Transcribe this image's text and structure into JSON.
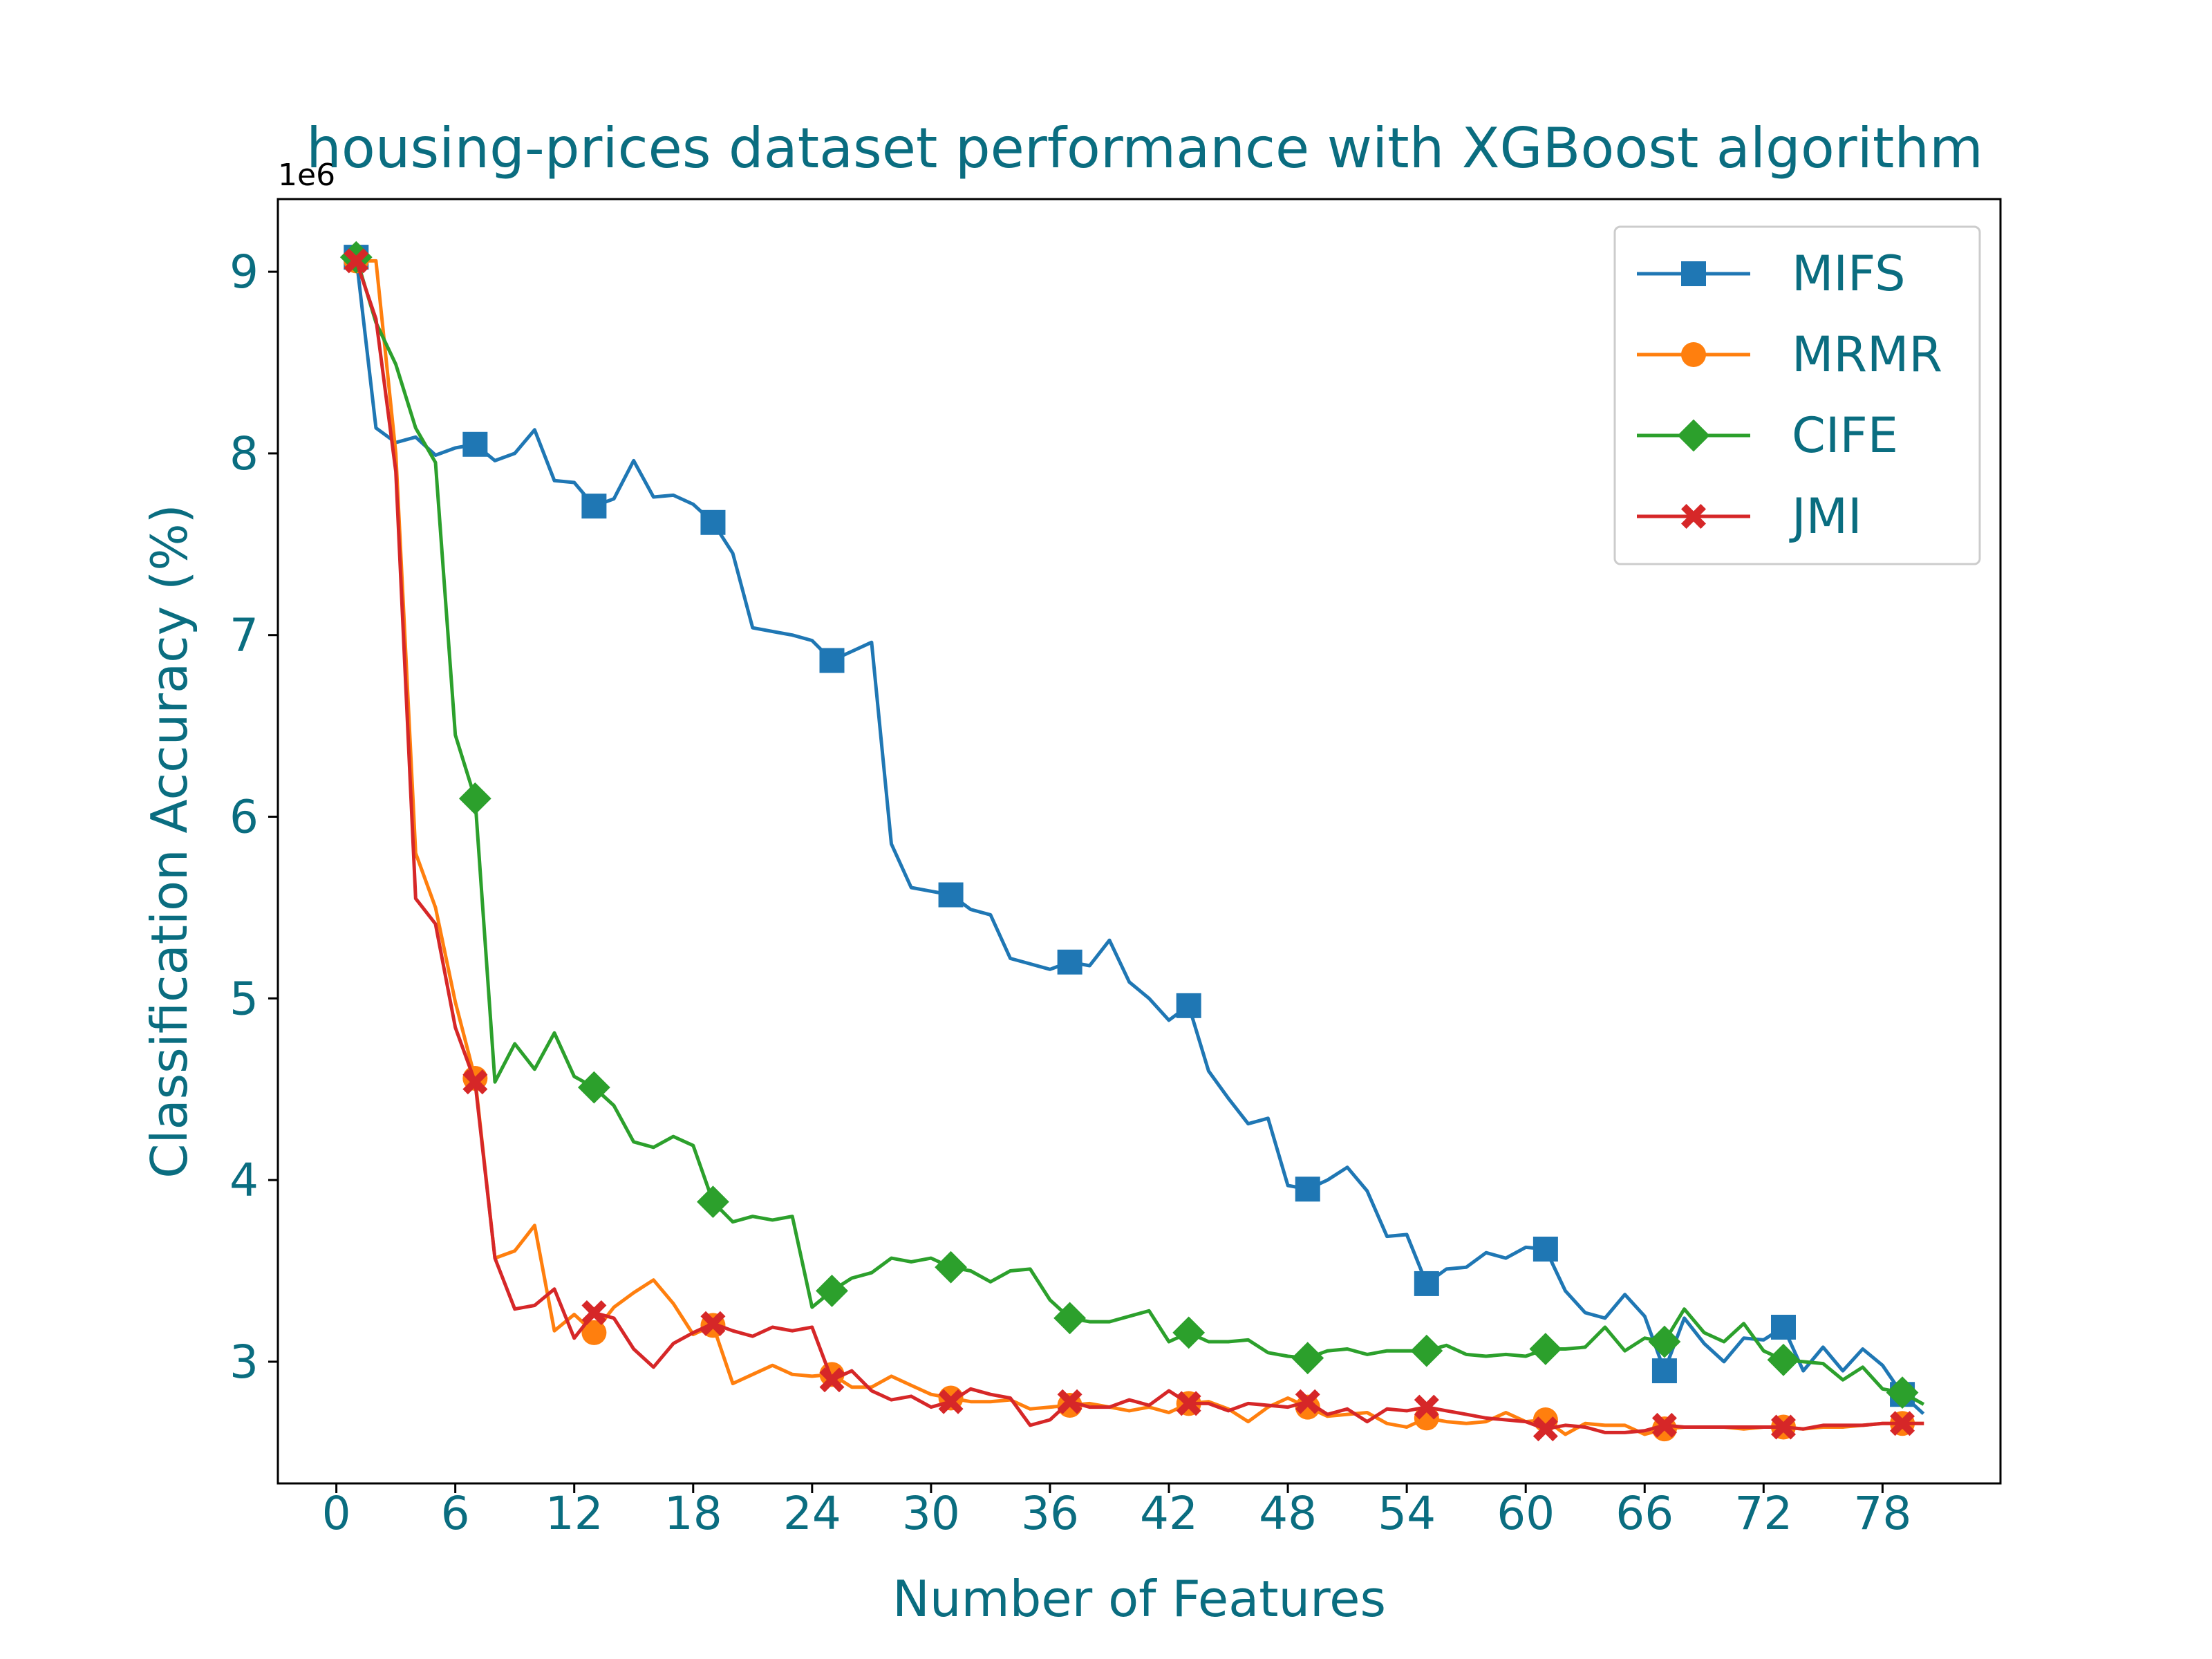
{
  "chart_data": {
    "type": "line",
    "title": "housing-prices dataset performance with XGBoost algorithm",
    "xlabel": "Number of Features",
    "ylabel": "Classification Accuracy (%)",
    "y_offset_label": "1e6",
    "y_scale_factor": 1000000,
    "xlim": [
      -2.95,
      83.95
    ],
    "ylim": [
      2.33,
      9.4
    ],
    "x_ticks": [
      0,
      6,
      12,
      18,
      24,
      30,
      36,
      42,
      48,
      54,
      60,
      66,
      72,
      78
    ],
    "y_ticks": [
      3,
      4,
      5,
      6,
      7,
      8,
      9
    ],
    "marker_every": 6,
    "marker_offset": 1,
    "legend_position": "upper right",
    "grid": false,
    "x": [
      1,
      2,
      3,
      4,
      5,
      6,
      7,
      8,
      9,
      10,
      11,
      12,
      13,
      14,
      15,
      16,
      17,
      18,
      19,
      20,
      21,
      22,
      23,
      24,
      25,
      26,
      27,
      28,
      29,
      30,
      31,
      32,
      33,
      34,
      35,
      36,
      37,
      38,
      39,
      40,
      41,
      42,
      43,
      44,
      45,
      46,
      47,
      48,
      49,
      50,
      51,
      52,
      53,
      54,
      55,
      56,
      57,
      58,
      59,
      60,
      61,
      62,
      63,
      64,
      65,
      66,
      67,
      68,
      69,
      70,
      71,
      72,
      73,
      74,
      75,
      76,
      77,
      78,
      79,
      80
    ],
    "series": [
      {
        "name": "MIFS",
        "color": "#1f77b4",
        "marker": "square",
        "values": [
          9.08,
          8.14,
          8.06,
          8.09,
          7.99,
          8.03,
          8.05,
          7.96,
          8.0,
          8.13,
          7.85,
          7.84,
          7.71,
          7.75,
          7.96,
          7.76,
          7.77,
          7.72,
          7.62,
          7.45,
          7.04,
          7.02,
          7.0,
          6.97,
          6.86,
          6.91,
          6.96,
          5.85,
          5.61,
          5.59,
          5.57,
          5.49,
          5.46,
          5.22,
          5.19,
          5.16,
          5.2,
          5.18,
          5.32,
          5.09,
          5.0,
          4.88,
          4.96,
          4.6,
          4.45,
          4.31,
          4.34,
          3.97,
          3.95,
          4.0,
          4.07,
          3.94,
          3.69,
          3.7,
          3.43,
          3.51,
          3.52,
          3.6,
          3.57,
          3.63,
          3.62,
          3.39,
          3.27,
          3.24,
          3.37,
          3.25,
          2.95,
          3.24,
          3.1,
          3.0,
          3.13,
          3.12,
          3.19,
          2.95,
          3.08,
          2.95,
          3.07,
          2.98,
          2.82,
          2.72
        ]
      },
      {
        "name": "MRMR",
        "color": "#ff7f0e",
        "marker": "circle",
        "values": [
          9.06,
          9.06,
          8.0,
          5.8,
          5.5,
          4.98,
          4.56,
          3.57,
          3.61,
          3.75,
          3.17,
          3.26,
          3.16,
          3.3,
          3.38,
          3.45,
          3.32,
          3.15,
          3.2,
          2.88,
          2.93,
          2.98,
          2.93,
          2.92,
          2.93,
          2.86,
          2.86,
          2.92,
          2.87,
          2.82,
          2.8,
          2.78,
          2.78,
          2.79,
          2.74,
          2.75,
          2.76,
          2.77,
          2.75,
          2.73,
          2.75,
          2.72,
          2.77,
          2.78,
          2.74,
          2.67,
          2.75,
          2.8,
          2.75,
          2.7,
          2.71,
          2.72,
          2.66,
          2.64,
          2.69,
          2.67,
          2.66,
          2.67,
          2.72,
          2.67,
          2.68,
          2.6,
          2.66,
          2.65,
          2.65,
          2.6,
          2.63,
          2.64,
          2.64,
          2.64,
          2.63,
          2.64,
          2.64,
          2.63,
          2.64,
          2.64,
          2.65,
          2.66,
          2.66,
          2.66
        ]
      },
      {
        "name": "CIFE",
        "color": "#2ca02c",
        "marker": "diamond",
        "values": [
          9.08,
          8.72,
          8.49,
          8.14,
          7.95,
          6.45,
          6.1,
          4.54,
          4.75,
          4.61,
          4.81,
          4.57,
          4.51,
          4.41,
          4.21,
          4.18,
          4.24,
          4.19,
          3.88,
          3.77,
          3.8,
          3.78,
          3.8,
          3.3,
          3.39,
          3.46,
          3.49,
          3.57,
          3.55,
          3.57,
          3.52,
          3.5,
          3.44,
          3.5,
          3.51,
          3.34,
          3.24,
          3.22,
          3.22,
          3.25,
          3.28,
          3.11,
          3.16,
          3.11,
          3.11,
          3.12,
          3.05,
          3.03,
          3.02,
          3.06,
          3.07,
          3.04,
          3.06,
          3.06,
          3.06,
          3.09,
          3.04,
          3.03,
          3.04,
          3.03,
          3.07,
          3.07,
          3.08,
          3.19,
          3.06,
          3.13,
          3.11,
          3.29,
          3.16,
          3.11,
          3.21,
          3.06,
          3.01,
          3.0,
          2.99,
          2.9,
          2.97,
          2.85,
          2.83,
          2.77
        ]
      },
      {
        "name": "JMI",
        "color": "#d62728",
        "marker": "x",
        "values": [
          9.06,
          8.74,
          7.9,
          5.55,
          5.41,
          4.84,
          4.54,
          3.57,
          3.29,
          3.31,
          3.4,
          3.13,
          3.27,
          3.24,
          3.07,
          2.97,
          3.1,
          3.16,
          3.21,
          3.17,
          3.14,
          3.19,
          3.17,
          3.19,
          2.9,
          2.95,
          2.84,
          2.79,
          2.81,
          2.75,
          2.78,
          2.85,
          2.82,
          2.8,
          2.65,
          2.68,
          2.78,
          2.75,
          2.75,
          2.79,
          2.76,
          2.84,
          2.77,
          2.77,
          2.73,
          2.77,
          2.76,
          2.75,
          2.78,
          2.71,
          2.74,
          2.67,
          2.74,
          2.73,
          2.75,
          2.73,
          2.71,
          2.69,
          2.68,
          2.67,
          2.63,
          2.65,
          2.64,
          2.61,
          2.61,
          2.62,
          2.65,
          2.64,
          2.64,
          2.64,
          2.64,
          2.64,
          2.64,
          2.63,
          2.65,
          2.65,
          2.65,
          2.66,
          2.66,
          2.66
        ]
      }
    ]
  }
}
